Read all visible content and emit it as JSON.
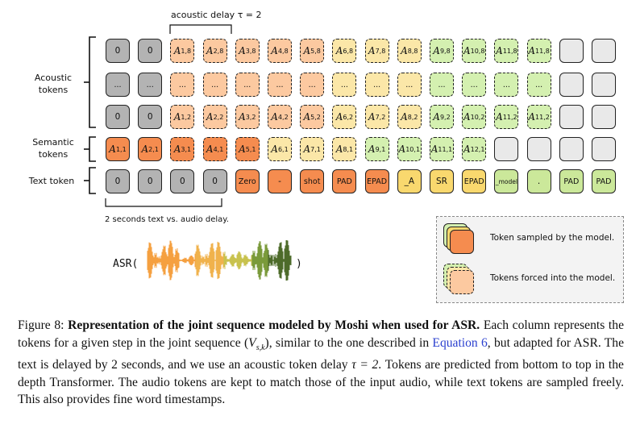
{
  "figure": {
    "delay_label": "acoustic delay τ = 2",
    "text_delay_label": "2 seconds text vs. audio delay.",
    "row_labels": {
      "acoustic": [
        "Acoustic",
        "tokens"
      ],
      "semantic": [
        "Semantic",
        "tokens"
      ],
      "text": "Text token"
    },
    "acoustic_top": [
      "0",
      "0",
      "A|1,8",
      "A|2,8",
      "A|3,8",
      "A|4,8",
      "A|5,8",
      "A|6,8",
      "A|7,8",
      "A|8,8",
      "A|9,8",
      "A|10,8",
      "A|11,8",
      "A|11,8",
      "",
      ""
    ],
    "acoustic_middle": [
      "...",
      "...",
      "...",
      "...",
      "...",
      "...",
      "...",
      "...",
      "...",
      "...",
      "...",
      "...",
      "...",
      "...",
      "",
      ""
    ],
    "acoustic_bottom": [
      "0",
      "0",
      "A|1,2",
      "A|2,2",
      "A|3,2",
      "A|4,2",
      "A|5,2",
      "A|6,2",
      "A|7,2",
      "A|8,2",
      "A|9,2",
      "A|10,2",
      "A|11,2",
      "A|11,2",
      "",
      ""
    ],
    "semantic": [
      "A|1,1",
      "A|2,1",
      "A|3,1",
      "A|4,1",
      "A|5,1",
      "A|6,1",
      "A|7,1",
      "A|8,1",
      "A|9,1",
      "A|10,1",
      "A|11,1",
      "A|12,1",
      "",
      "",
      "",
      ""
    ],
    "text": [
      "0",
      "0",
      "0",
      "0",
      "Zero",
      "-",
      "shot",
      "PAD",
      "EPAD",
      "_A",
      "SR",
      "EPAD",
      "_model",
      ".",
      "PAD",
      "PAD"
    ],
    "asr_open": "ASR(",
    "asr_close": ")",
    "legend": {
      "sampled": "Token sampled by the model.",
      "forced": "Tokens forced into the model."
    }
  },
  "caption": {
    "label": "Figure 8:",
    "bold": "Representation of the joint sequence modeled by Moshi when used for ASR.",
    "part1": " Each column represents the tokens for a given step in the joint sequence (",
    "math": "V",
    "math_sub": "s,k",
    "part2": "), similar to the one described in ",
    "ref": "Equation 6",
    "part3": ", but adapted for ASR. The text is delayed by 2 seconds, and we use an acoustic token delay ",
    "tau": "τ = 2",
    "part4": ". Tokens are predicted from bottom to top in the depth Transformer. The audio tokens are kept to match those of the input audio, while text tokens are sampled freely. This also provides fine word timestamps."
  },
  "colors": {
    "gray": "#b3b3b3",
    "empty": "#e9e9e9",
    "light_orange": "#fcc9a0",
    "dark_orange": "#f58c4f",
    "light_yellow": "#fbe7a8",
    "yellow": "#f9d86e",
    "light_green": "#d4f0b0",
    "green": "#c3ea95",
    "olive": "#cbe89a"
  }
}
